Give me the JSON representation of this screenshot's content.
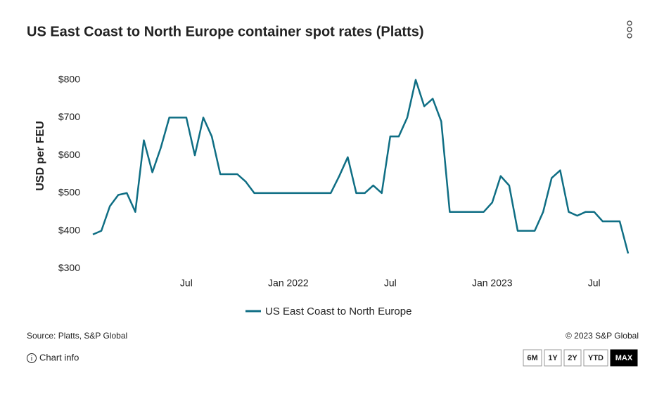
{
  "chart_data": {
    "type": "line",
    "title": "US East Coast to North Europe container spot rates (Platts)",
    "y_label": "USD per FEU",
    "categories": [
      null,
      null,
      null,
      null,
      null,
      null,
      null,
      null,
      null,
      null,
      null,
      "Jul",
      null,
      null,
      null,
      null,
      null,
      null,
      null,
      null,
      null,
      null,
      null,
      "Jan 2022",
      null,
      null,
      null,
      null,
      null,
      null,
      null,
      null,
      null,
      null,
      null,
      "Jul",
      null,
      null,
      null,
      null,
      null,
      null,
      null,
      null,
      null,
      null,
      null,
      "Jan 2023",
      null,
      null,
      null,
      null,
      null,
      null,
      null,
      null,
      null,
      null,
      null,
      "Jul",
      null,
      null,
      null,
      null
    ],
    "series": [
      {
        "name": "US East Coast to North Europe",
        "color": "#0f6e84",
        "values": [
          390,
          400,
          465,
          495,
          500,
          450,
          640,
          555,
          620,
          700,
          700,
          700,
          600,
          700,
          650,
          550,
          550,
          550,
          530,
          500,
          500,
          500,
          500,
          500,
          500,
          500,
          500,
          500,
          500,
          545,
          595,
          500,
          500,
          520,
          500,
          650,
          650,
          700,
          800,
          730,
          750,
          690,
          450,
          450,
          450,
          450,
          450,
          475,
          545,
          520,
          400,
          400,
          400,
          450,
          540,
          560,
          450,
          440,
          450,
          450,
          425,
          425,
          425,
          340
        ]
      }
    ],
    "ylim": [
      280,
      820
    ],
    "yticks": [
      {
        "value": 300,
        "label": "$300"
      },
      {
        "value": 400,
        "label": "$400"
      },
      {
        "value": 500,
        "label": "$500"
      },
      {
        "value": 600,
        "label": "$600"
      },
      {
        "value": 700,
        "label": "$700"
      },
      {
        "value": 800,
        "label": "$800"
      }
    ],
    "grid": false,
    "legend": "bottom"
  },
  "footer": {
    "source": "Source: Platts, S&P Global",
    "copyright": "© 2023 S&P Global",
    "chart_info": "Chart info",
    "ranges": [
      "6M",
      "1Y",
      "2Y",
      "YTD",
      "MAX"
    ],
    "active_range": "MAX"
  }
}
